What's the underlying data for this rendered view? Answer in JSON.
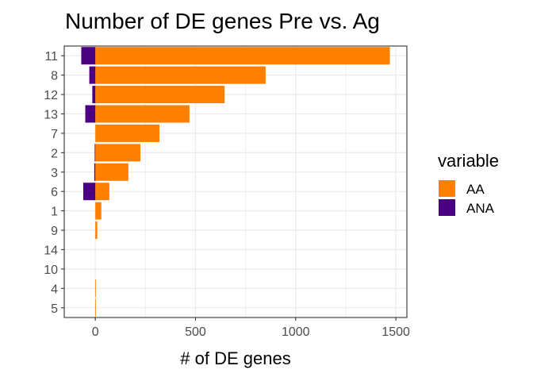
{
  "chart_data": {
    "type": "bar",
    "orientation": "horizontal",
    "stacked": true,
    "title": "Number of DE genes Pre vs. Ag",
    "xlabel": "# of DE genes",
    "ylabel": "",
    "categories": [
      "11",
      "8",
      "12",
      "13",
      "7",
      "2",
      "3",
      "6",
      "1",
      "9",
      "14",
      "10",
      "4",
      "5"
    ],
    "series": [
      {
        "name": "AA",
        "color": "#FF8000",
        "values": [
          1470,
          850,
          645,
          470,
          320,
          225,
          165,
          70,
          30,
          10,
          0,
          0,
          3,
          2
        ]
      },
      {
        "name": "ANA",
        "color": "#4B0082",
        "values": [
          -70,
          -30,
          -15,
          -50,
          0,
          -3,
          -5,
          -60,
          0,
          0,
          0,
          0,
          0,
          0
        ]
      }
    ],
    "xlim": [
      -155,
      1555
    ],
    "xticks": [
      0,
      500,
      1000,
      1500
    ],
    "xtick_labels": [
      "0",
      "500",
      "1000",
      "1500"
    ],
    "grid": true,
    "legend": {
      "title": "variable",
      "position": "right"
    }
  }
}
